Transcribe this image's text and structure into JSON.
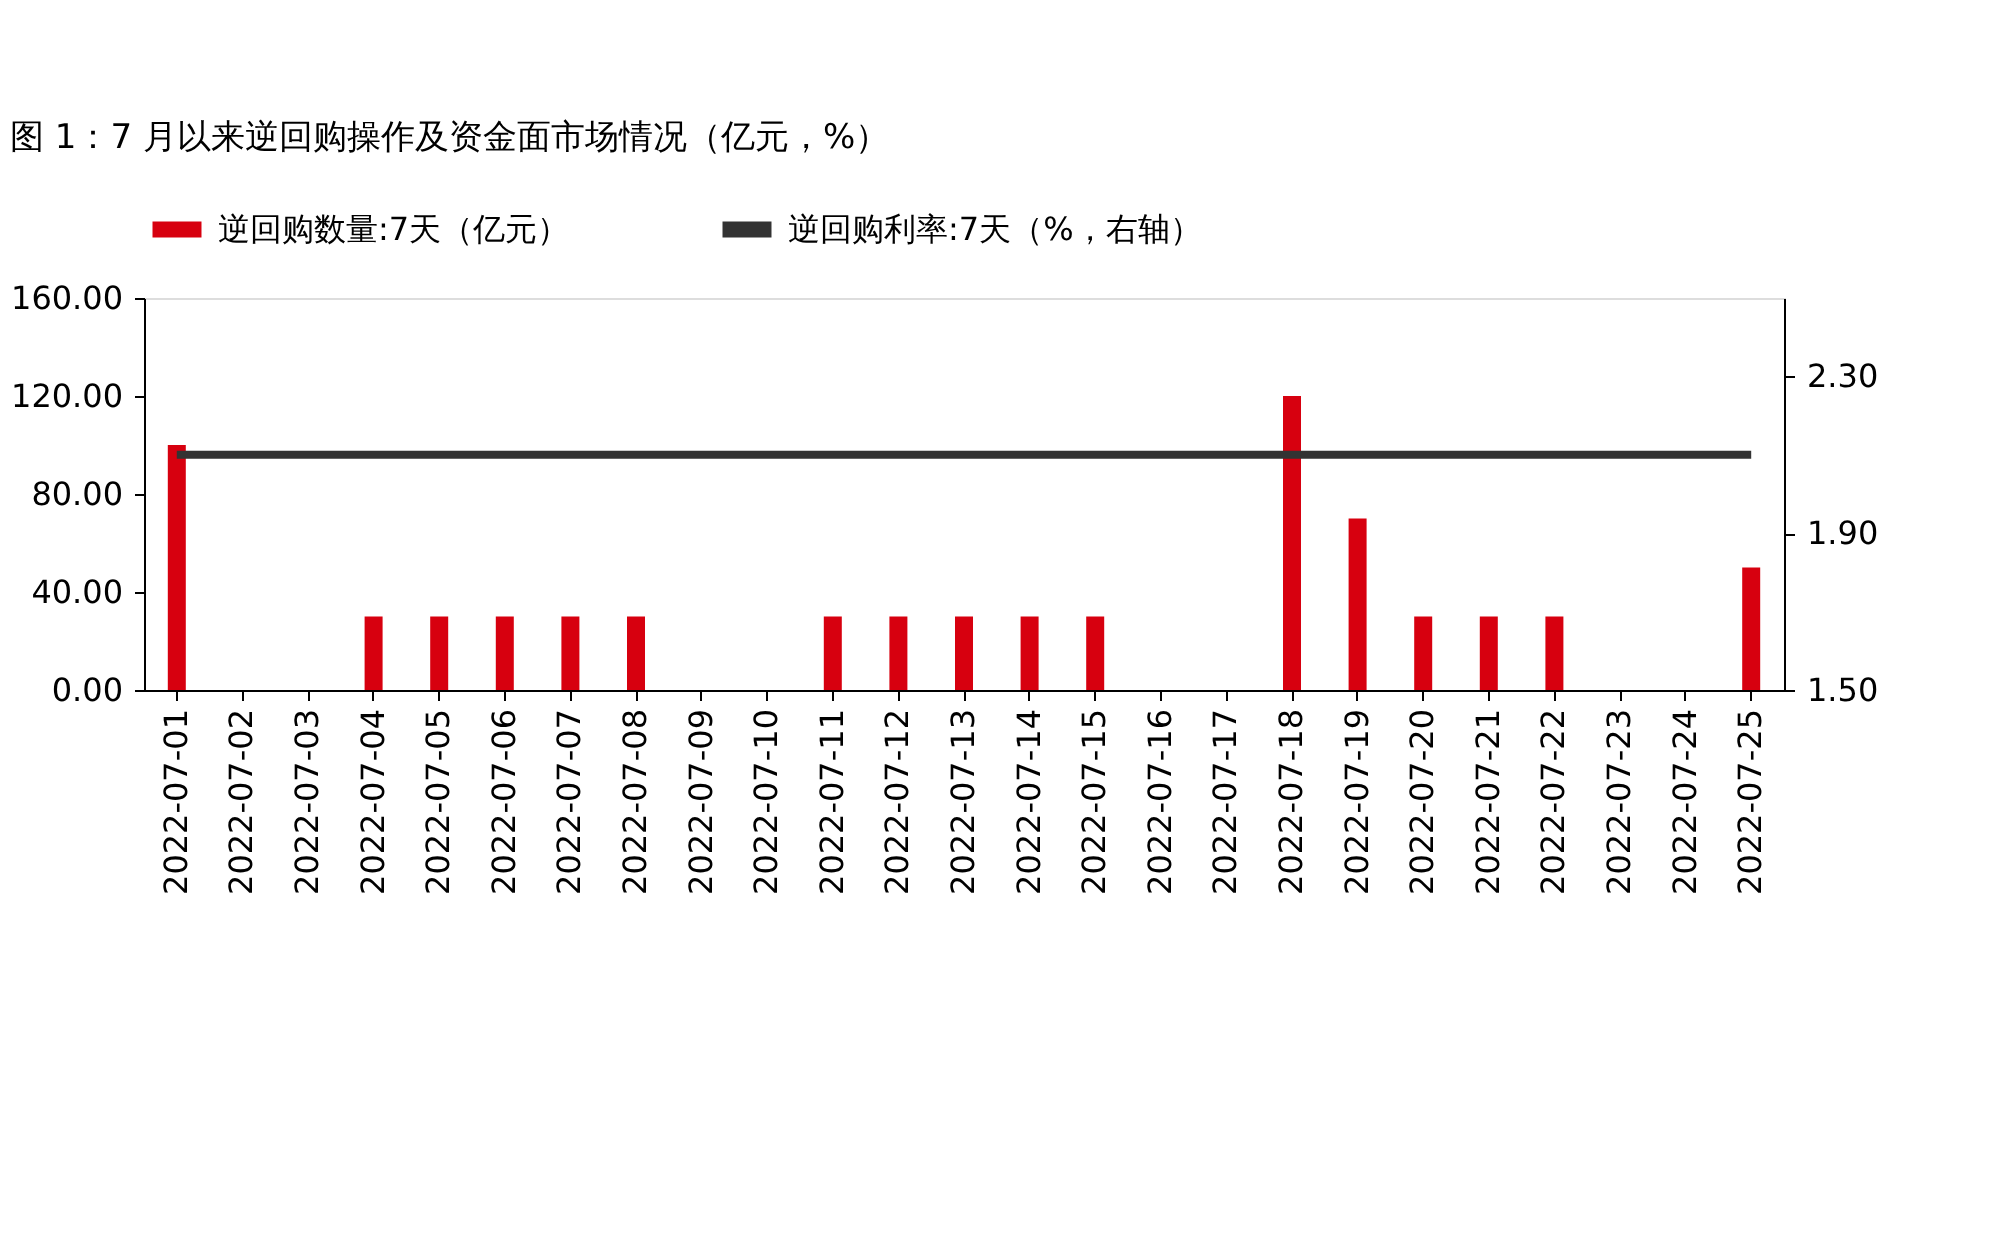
{
  "chart_data": {
    "type": "bar",
    "title": "图 1：7 月以来逆回购操作及资金面市场情况（亿元，%）",
    "categories": [
      "2022-07-01",
      "2022-07-02",
      "2022-07-03",
      "2022-07-04",
      "2022-07-05",
      "2022-07-06",
      "2022-07-07",
      "2022-07-08",
      "2022-07-09",
      "2022-07-10",
      "2022-07-11",
      "2022-07-12",
      "2022-07-13",
      "2022-07-14",
      "2022-07-15",
      "2022-07-16",
      "2022-07-17",
      "2022-07-18",
      "2022-07-19",
      "2022-07-20",
      "2022-07-21",
      "2022-07-22",
      "2022-07-23",
      "2022-07-24",
      "2022-07-25"
    ],
    "series": [
      {
        "name": "逆回购数量:7天（亿元）",
        "color": "#d7000f",
        "values": [
          100,
          null,
          null,
          30,
          30,
          30,
          30,
          30,
          null,
          null,
          30,
          30,
          30,
          30,
          30,
          null,
          null,
          120,
          70,
          30,
          30,
          30,
          null,
          null,
          50
        ]
      },
      {
        "name": "逆回购利率:7天（%，右轴）",
        "color": "#333333",
        "type": "line",
        "axis": "y2",
        "values": [
          2.1,
          2.1,
          2.1,
          2.1,
          2.1,
          2.1,
          2.1,
          2.1,
          2.1,
          2.1,
          2.1,
          2.1,
          2.1,
          2.1,
          2.1,
          2.1,
          2.1,
          2.1,
          2.1,
          2.1,
          2.1,
          2.1,
          2.1,
          2.1,
          2.1
        ]
      }
    ],
    "ylim": [
      0,
      160
    ],
    "yticks": [
      {
        "value": 0,
        "label": "0.00"
      },
      {
        "value": 40,
        "label": "40.00"
      },
      {
        "value": 80,
        "label": "80.00"
      },
      {
        "value": 120,
        "label": "120.00"
      },
      {
        "value": 160,
        "label": "160.00"
      }
    ],
    "y2lim": [
      1.5,
      2.5
    ],
    "y2ticks": [
      {
        "value": 1.5,
        "label": "1.50"
      },
      {
        "value": 1.9,
        "label": "1.90"
      },
      {
        "value": 2.3,
        "label": "2.30"
      }
    ],
    "legend": "top",
    "grid": false
  }
}
